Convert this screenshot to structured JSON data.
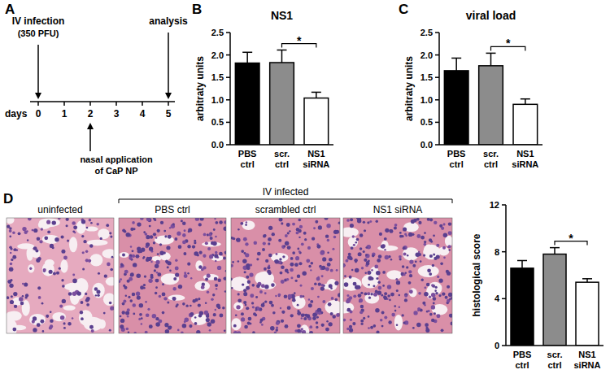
{
  "panels": [
    "A",
    "B",
    "C",
    "D"
  ],
  "timeline": {
    "axis_label": "days",
    "ticks": [
      0,
      1,
      2,
      3,
      4,
      5
    ],
    "events": [
      {
        "day": 0,
        "lines": [
          "IV infection",
          "(350 PFU)"
        ],
        "side": "above"
      },
      {
        "day": 5,
        "lines": [
          "analysis"
        ],
        "side": "above"
      },
      {
        "day": 2,
        "lines": [
          "nasal application",
          "of CaP NP"
        ],
        "side": "below"
      }
    ]
  },
  "histology": {
    "group_label": "IV infected",
    "images": [
      {
        "label": "uninfected",
        "group": false
      },
      {
        "label": "PBS ctrl",
        "group": true
      },
      {
        "label": "scrambled ctrl",
        "group": true
      },
      {
        "label": "NS1 siRNA",
        "group": true
      }
    ]
  },
  "chart_data": [
    {
      "type": "bar",
      "title": "NS1",
      "y_label": "arbitraty units",
      "categories": [
        "PBS ctrl",
        "scr. ctrl",
        "NS1 siRNA"
      ],
      "values": [
        1.82,
        1.83,
        1.04
      ],
      "errors": [
        0.24,
        0.28,
        0.13
      ],
      "colors": [
        "#000000",
        "#8c8c8c",
        "#ffffff"
      ],
      "ylim": [
        0,
        2.5
      ],
      "yticks": [
        {
          "value": 0,
          "label": "0.0"
        },
        {
          "value": 0.5,
          "label": "0.5"
        },
        {
          "value": 1,
          "label": "1.0"
        },
        {
          "value": 1.5,
          "label": "1.5"
        },
        {
          "value": 2,
          "label": "2.0"
        },
        {
          "value": 2.5,
          "label": "2.5"
        }
      ],
      "significance": [
        {
          "label": "*",
          "between": [
            "scr. ctrl",
            "NS1 siRNA"
          ]
        }
      ]
    },
    {
      "type": "bar",
      "title": "viral load",
      "y_label": "arbitraty units",
      "categories": [
        "PBS ctrl",
        "scr. ctrl",
        "NS1 siRNA"
      ],
      "values": [
        1.65,
        1.76,
        0.9
      ],
      "errors": [
        0.28,
        0.28,
        0.12
      ],
      "colors": [
        "#000000",
        "#8c8c8c",
        "#ffffff"
      ],
      "ylim": [
        0,
        2.5
      ],
      "yticks": [
        {
          "value": 0,
          "label": "0.0"
        },
        {
          "value": 0.5,
          "label": "0.5"
        },
        {
          "value": 1,
          "label": "1.0"
        },
        {
          "value": 1.5,
          "label": "1.5"
        },
        {
          "value": 2,
          "label": "2.0"
        },
        {
          "value": 2.5,
          "label": "2.5"
        }
      ],
      "significance": [
        {
          "label": "*",
          "between": [
            "scr. ctrl",
            "NS1 siRNA"
          ]
        }
      ]
    },
    {
      "type": "bar",
      "y_label": "histological score",
      "categories": [
        "PBS ctrl",
        "scr. ctrl",
        "NS1 siRNA"
      ],
      "values": [
        6.6,
        7.8,
        5.4
      ],
      "errors": [
        0.65,
        0.55,
        0.3
      ],
      "colors": [
        "#000000",
        "#8c8c8c",
        "#ffffff"
      ],
      "ylim": [
        0,
        12
      ],
      "yticks": [
        0,
        4,
        8,
        12
      ],
      "significance": [
        {
          "label": "*",
          "between": [
            "scr. ctrl",
            "NS1 siRNA"
          ]
        }
      ]
    }
  ]
}
